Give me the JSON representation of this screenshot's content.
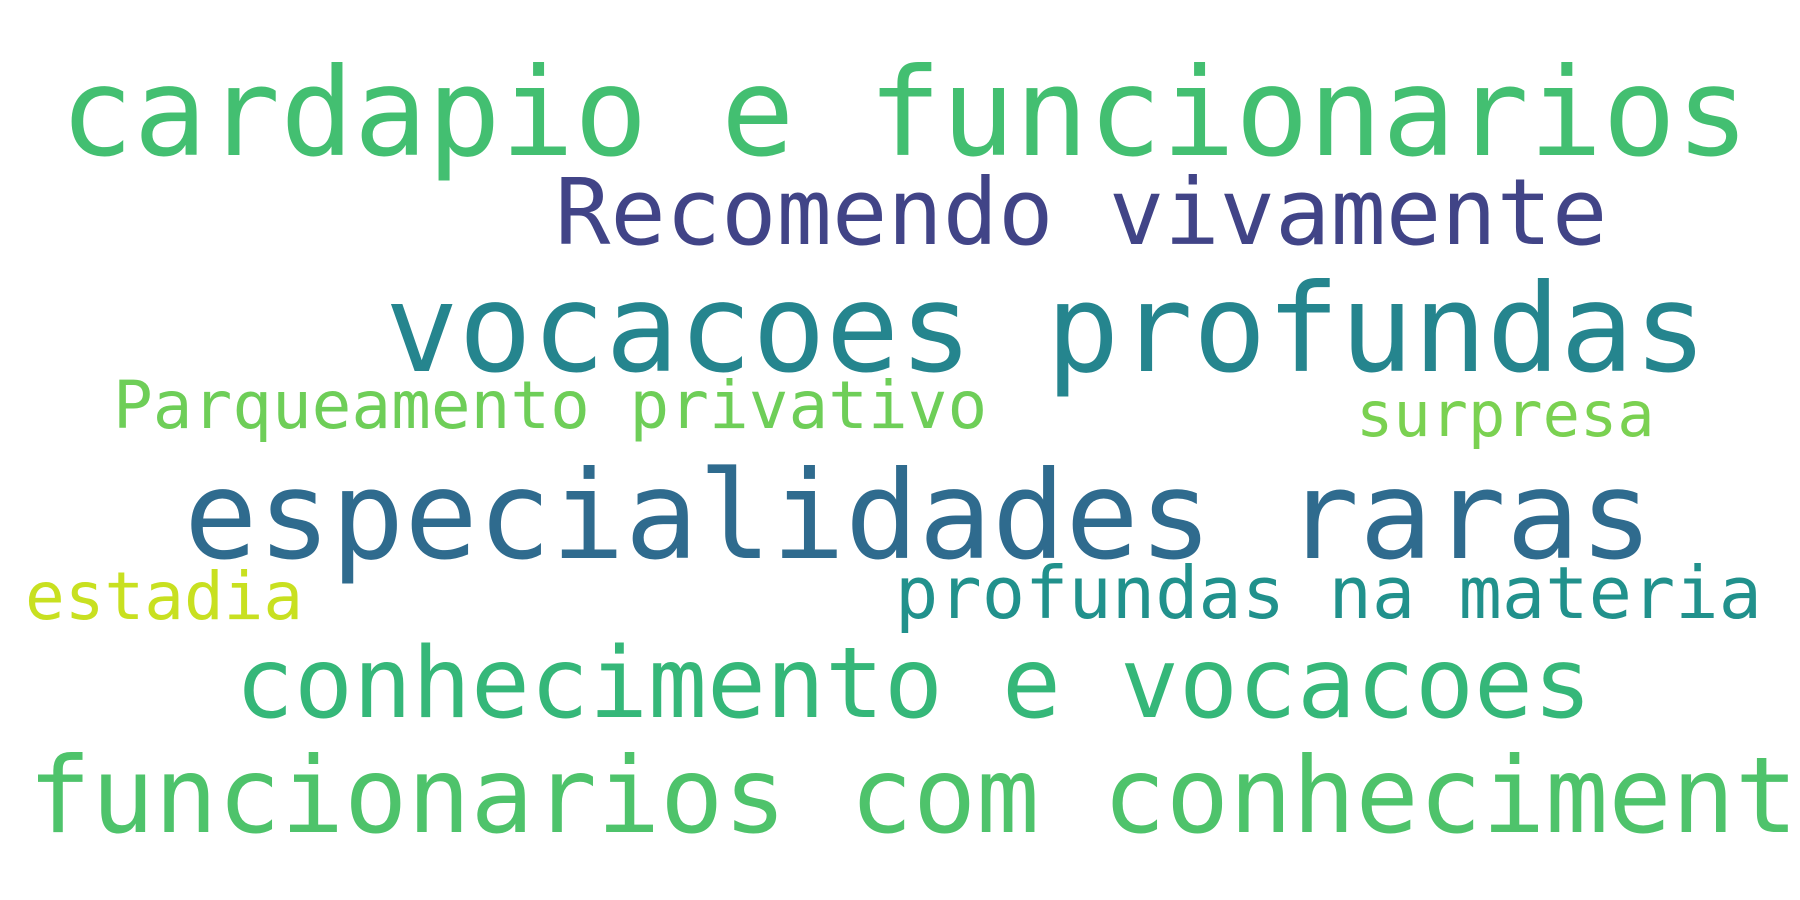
{
  "words": [
    {
      "text": "cardapio e funcionarios",
      "color": "#43bf71"
    },
    {
      "text": "Recomendo vivamente",
      "color": "#414487"
    },
    {
      "text": "vocacoes profundas",
      "color": "#25858e"
    },
    {
      "text": "Parqueamento privativo",
      "color": "#6ece58"
    },
    {
      "text": "surpresa",
      "color": "#7ad151"
    },
    {
      "text": "especialidades raras",
      "color": "#2f6b8e"
    },
    {
      "text": "estadia",
      "color": "#c8e020"
    },
    {
      "text": "profundas na materia",
      "color": "#21918c"
    },
    {
      "text": "conhecimento e vocacoes",
      "color": "#35b779"
    },
    {
      "text": "funcionarios com conhecimento",
      "color": "#4ec36b"
    }
  ]
}
